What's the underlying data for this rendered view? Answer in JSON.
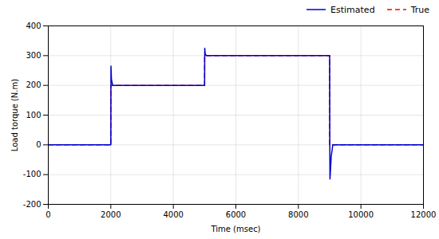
{
  "chart_data": {
    "type": "line",
    "xlabel": "Time (msec)",
    "ylabel": "Load torque (N.m)",
    "xlim": [
      0,
      12000
    ],
    "ylim": [
      -200,
      400
    ],
    "xticks": [
      0,
      2000,
      4000,
      6000,
      8000,
      10000,
      12000
    ],
    "yticks": [
      -200,
      -100,
      0,
      100,
      200,
      300,
      400
    ],
    "grid": true,
    "legend": "upper right",
    "series": [
      {
        "name": "True",
        "color": "#ff0000",
        "line_style": "dashed",
        "x": [
          0,
          2000,
          2000,
          5000,
          5000,
          9000,
          9000,
          12000
        ],
        "values": [
          0,
          0,
          200,
          200,
          300,
          300,
          0,
          0
        ]
      },
      {
        "name": "Estimated",
        "color": "#0000cc",
        "line_style": "solid",
        "x": [
          0,
          1998,
          2000,
          2005,
          2020,
          2060,
          2100,
          4998,
          5000,
          5005,
          5020,
          5060,
          5100,
          8998,
          9000,
          9005,
          9010,
          9050,
          9100,
          9200,
          12000
        ],
        "values": [
          0,
          0,
          0,
          265,
          220,
          200,
          200,
          200,
          200,
          325,
          305,
          300,
          300,
          300,
          300,
          0,
          -115,
          -40,
          0,
          0,
          0
        ]
      }
    ]
  }
}
